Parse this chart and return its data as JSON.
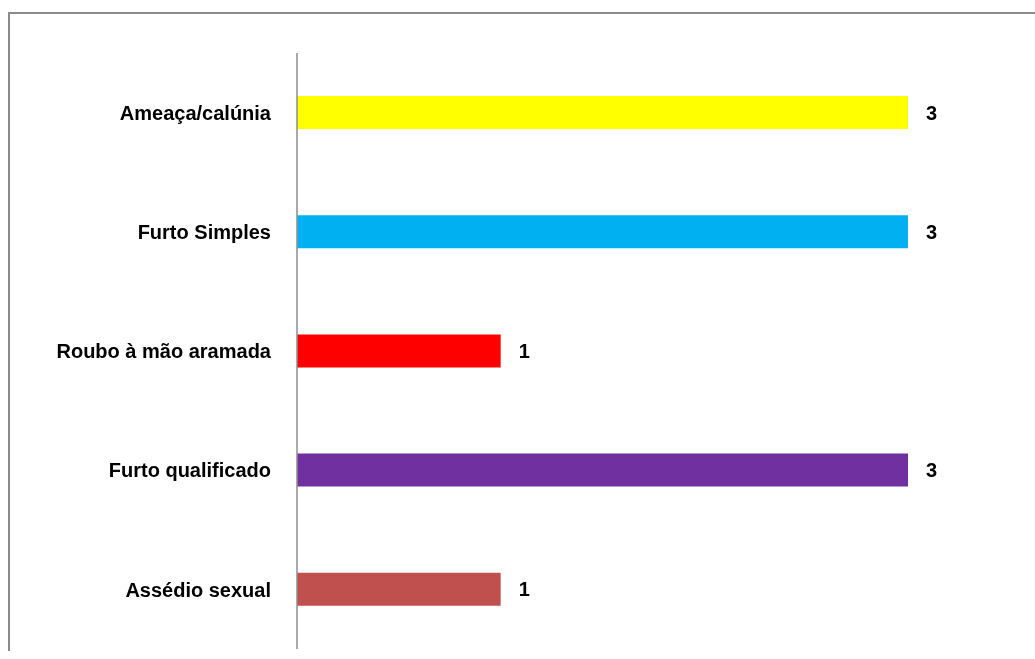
{
  "chart_data": {
    "type": "bar",
    "orientation": "horizontal",
    "categories": [
      "Ameaça/calúnia",
      "Furto Simples",
      "Roubo à mão aramada",
      "Furto qualificado",
      "Assédio sexual"
    ],
    "values": [
      3,
      3,
      1,
      3,
      1
    ],
    "colors": [
      "#ffff00",
      "#00b0f0",
      "#ff0000",
      "#7030a0",
      "#c0504d"
    ],
    "data_labels": true
  }
}
